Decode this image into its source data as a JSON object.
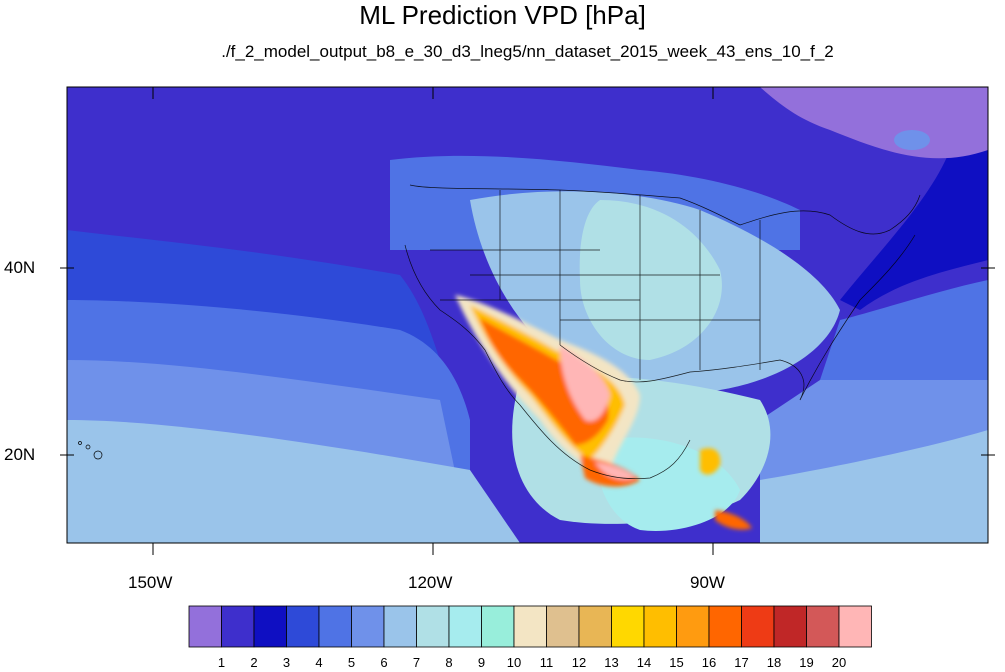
{
  "title": "ML Prediction VPD [hPa]",
  "subtitle": "./f_2_model_output_b8_e_30_d3_lneg5/nn_dataset_2015_week_43_ens_10_f_2",
  "map": {
    "lon_labels": [
      "150W",
      "120W",
      "90W"
    ],
    "lat_labels": [
      "40N",
      "20N"
    ]
  },
  "colorbar": {
    "colors": [
      "#9370db",
      "#3e2fcc",
      "#0f0fc2",
      "#2e4ad8",
      "#4f73e5",
      "#6f91ea",
      "#9ac4ea",
      "#b0e0e6",
      "#a6ecee",
      "#98eedb",
      "#f3e5c4",
      "#dfc08f",
      "#e8b655",
      "#ffd800",
      "#ffbe00",
      "#ff9b10",
      "#ff6600",
      "#ee3b15",
      "#c02727",
      "#d35858",
      "#ffb6b6"
    ],
    "labels": [
      "1",
      "2",
      "3",
      "4",
      "5",
      "6",
      "7",
      "8",
      "9",
      "10",
      "11",
      "12",
      "13",
      "14",
      "15",
      "16",
      "17",
      "18",
      "19",
      "20"
    ]
  }
}
